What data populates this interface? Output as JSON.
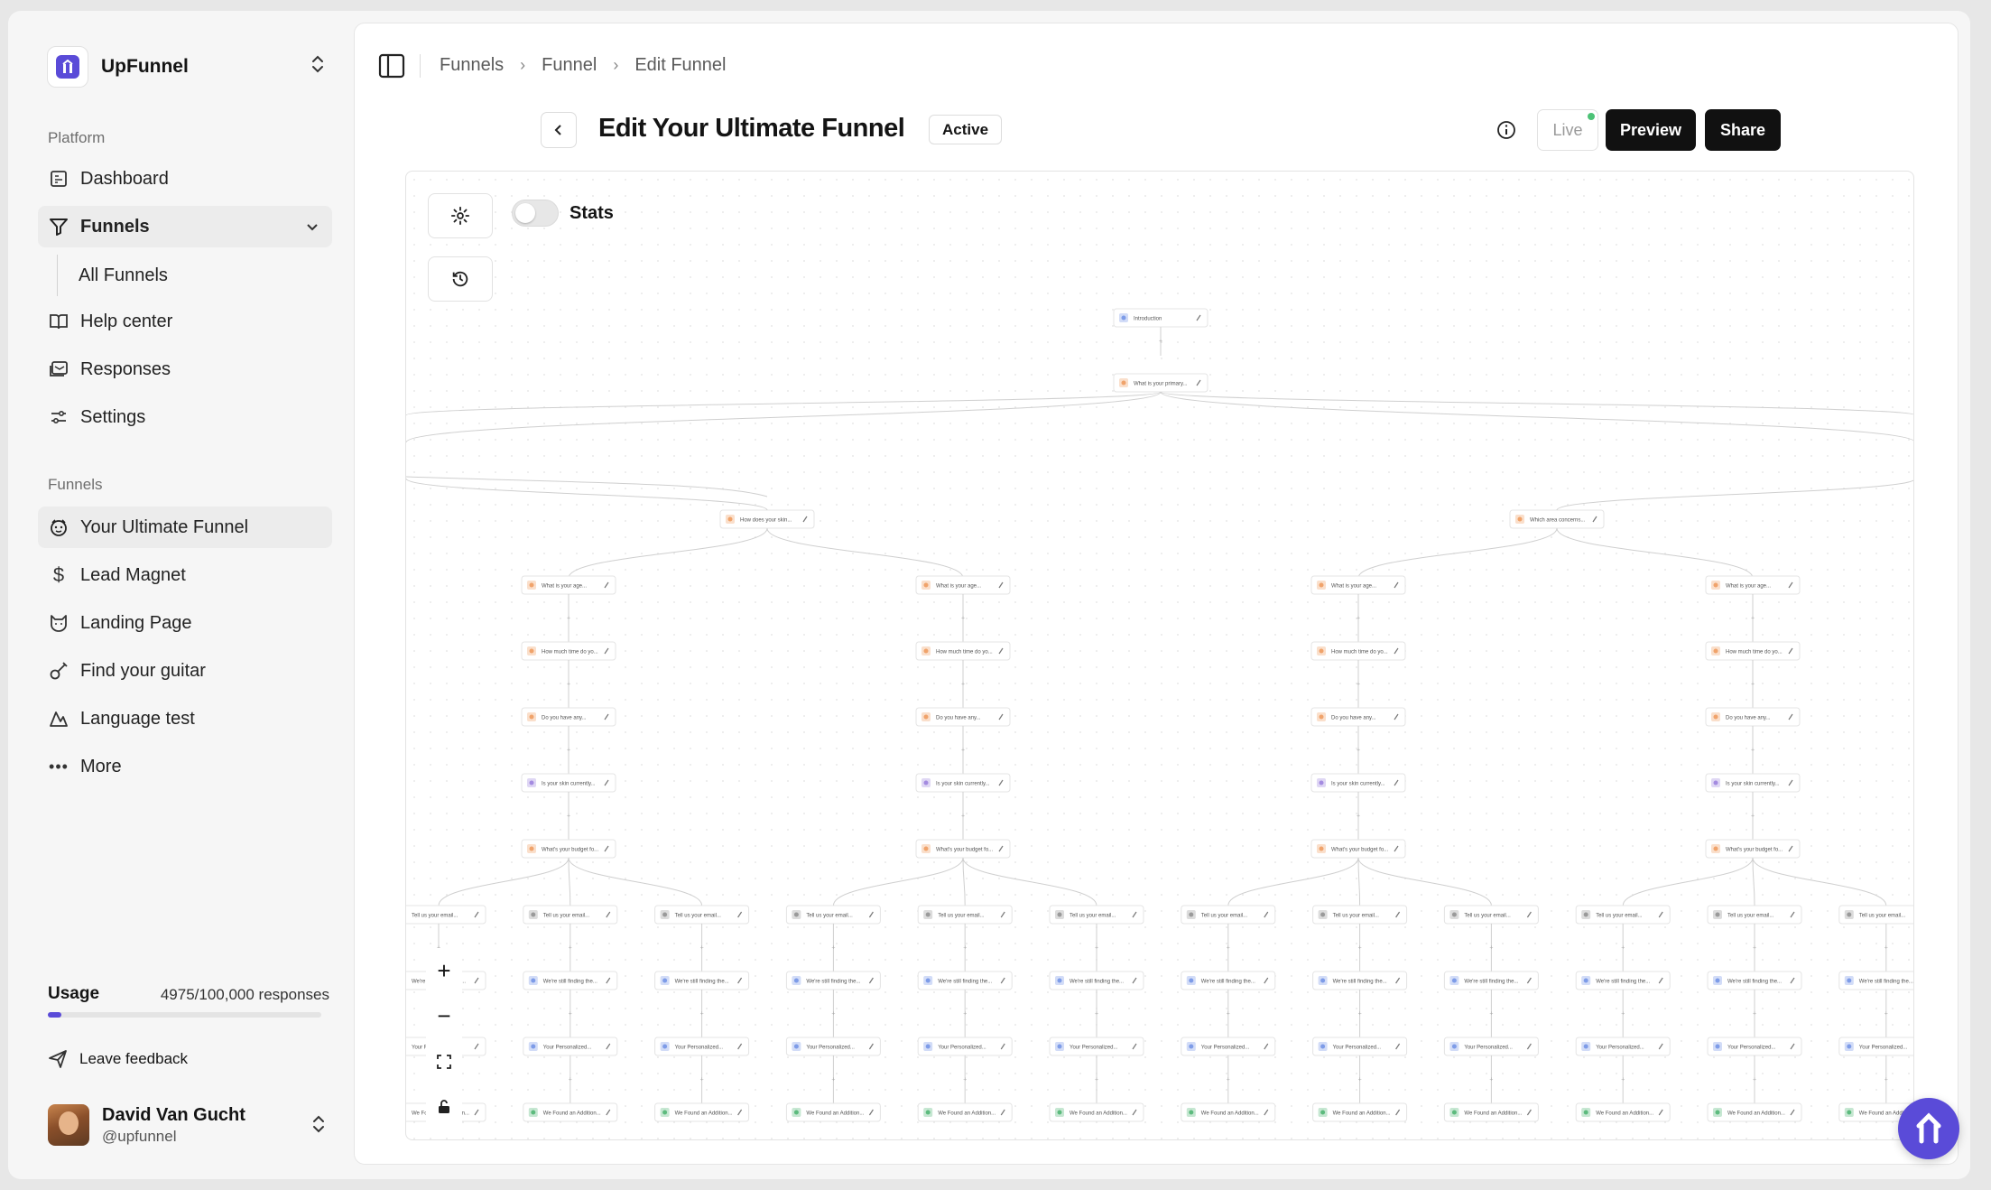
{
  "brand": {
    "name": "UpFunnel"
  },
  "sidebar": {
    "platform_label": "Platform",
    "platform_items": [
      {
        "label": "Dashboard",
        "icon": "dashboard-icon"
      },
      {
        "label": "Funnels",
        "icon": "filter-icon",
        "expanded": true
      },
      {
        "label": "All Funnels"
      },
      {
        "label": "Help center",
        "icon": "book-icon"
      },
      {
        "label": "Responses",
        "icon": "inbox-icon"
      },
      {
        "label": "Settings",
        "icon": "sliders-icon"
      }
    ],
    "funnels_label": "Funnels",
    "funnel_items": [
      {
        "label": "Your Ultimate Funnel",
        "icon": "smiley-icon",
        "active": true
      },
      {
        "label": "Lead Magnet",
        "icon": "dollar-icon"
      },
      {
        "label": "Landing Page",
        "icon": "cat-icon"
      },
      {
        "label": "Find your guitar",
        "icon": "guitar-icon"
      },
      {
        "label": "Language test",
        "icon": "chart-icon"
      },
      {
        "label": "More",
        "icon": "more-icon"
      }
    ],
    "usage": {
      "label": "Usage",
      "value_text": "4975/100,000 responses",
      "fraction": 0.05
    },
    "feedback_label": "Leave feedback",
    "user": {
      "name": "David Van Gucht",
      "handle": "@upfunnel"
    }
  },
  "header": {
    "breadcrumbs": [
      "Funnels",
      "Funnel",
      "Edit Funnel"
    ],
    "title": "Edit Your Ultimate Funnel",
    "status": "Active",
    "live_label": "Live",
    "preview_label": "Preview",
    "share_label": "Share"
  },
  "canvas": {
    "stats_label": "Stats",
    "stats_enabled": false,
    "nodes": {
      "intro": "Introduction",
      "primary": "What is your primary...",
      "branch_left": "How does your skin...",
      "branch_right": "Which area concerns...",
      "age": "What is your age...",
      "time": "How much time do yo...",
      "any": "Do you have any...",
      "skin": "Is your skin currently...",
      "budget": "What's your budget fo...",
      "email": "Tell us your email...",
      "finding": "We're still finding the...",
      "personalized": "Your Personalized...",
      "addition": "We Found an Addition..."
    }
  },
  "colors": {
    "accent": "#5a4bd8",
    "live": "#4cc276"
  }
}
